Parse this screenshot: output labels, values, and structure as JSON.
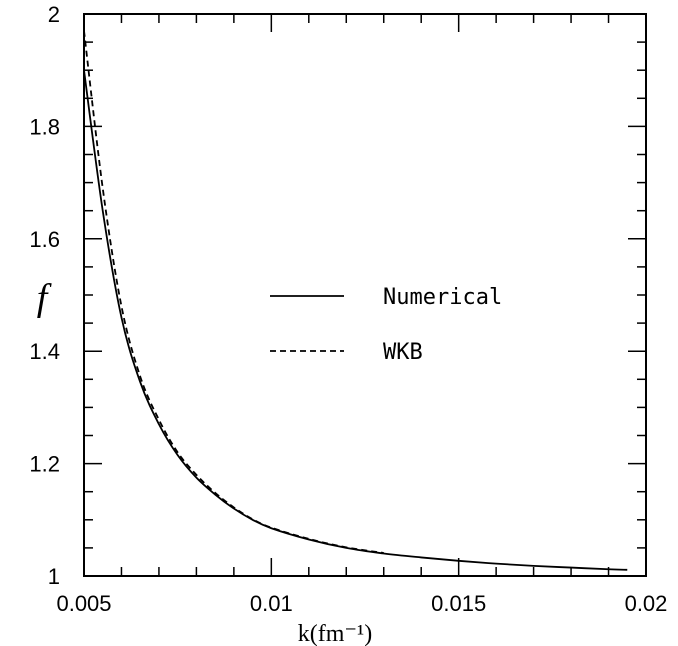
{
  "chart_data": {
    "type": "line",
    "title": "",
    "xlabel": "k(fm⁻¹)",
    "ylabel": "f",
    "xlim": [
      0.005,
      0.02
    ],
    "ylim": [
      1,
      2
    ],
    "x_ticks": [
      0.005,
      0.01,
      0.015,
      0.02
    ],
    "x_tick_labels": [
      "0.005",
      "0.01",
      "0.015",
      "0.02"
    ],
    "y_ticks": [
      1,
      1.2,
      1.4,
      1.6,
      1.8,
      2
    ],
    "y_tick_labels": [
      "1",
      "1.2",
      "1.4",
      "1.6",
      "1.8",
      "2"
    ],
    "grid": false,
    "legend_position": "center-right",
    "series": [
      {
        "name": "Numerical",
        "style": "solid",
        "x": [
          0.005,
          0.0055,
          0.006,
          0.0065,
          0.007,
          0.0075,
          0.008,
          0.0085,
          0.009,
          0.0095,
          0.01,
          0.011,
          0.012,
          0.013,
          0.014,
          0.015,
          0.016,
          0.017,
          0.018,
          0.019,
          0.0195
        ],
        "y": [
          1.9,
          1.65,
          1.46,
          1.345,
          1.27,
          1.215,
          1.175,
          1.145,
          1.12,
          1.1,
          1.085,
          1.065,
          1.05,
          1.04,
          1.033,
          1.027,
          1.022,
          1.018,
          1.015,
          1.012,
          1.011
        ]
      },
      {
        "name": "WKB",
        "style": "dashed",
        "x": [
          0.005,
          0.0055,
          0.006,
          0.0065,
          0.007,
          0.0075,
          0.008,
          0.0085,
          0.009,
          0.0095,
          0.01,
          0.011,
          0.012,
          0.013
        ],
        "y": [
          1.97,
          1.69,
          1.48,
          1.355,
          1.278,
          1.22,
          1.18,
          1.148,
          1.122,
          1.101,
          1.086,
          1.066,
          1.051,
          1.041
        ]
      }
    ],
    "colors": {
      "line": "#000000",
      "background": "#ffffff"
    }
  }
}
